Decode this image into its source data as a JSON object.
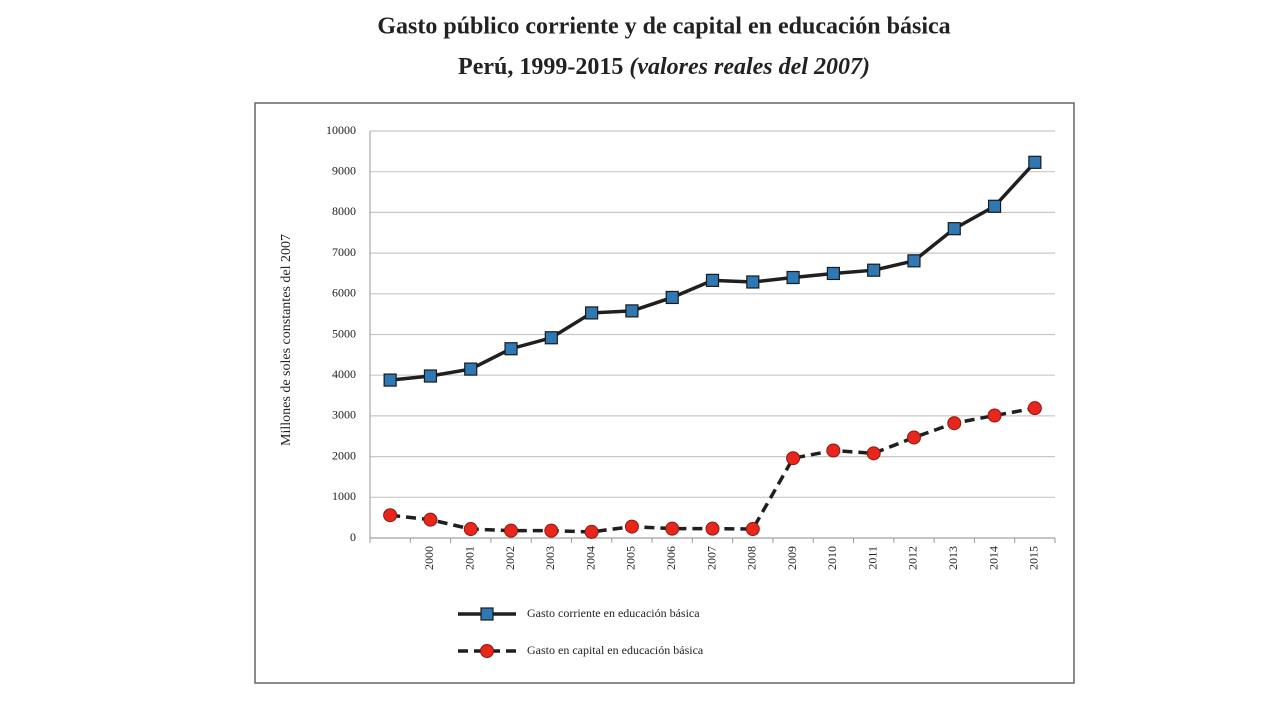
{
  "chart_data": {
    "type": "line",
    "title": "Gasto público corriente y de capital en educación básica",
    "subtitle": "Perú, 1999-2015",
    "subtitle_note": "(valores reales del 2007)",
    "y_label": "Millones de soles constantes del 2007",
    "categories": [
      null,
      "2000",
      "2001",
      "2002",
      "2003",
      "2004",
      "2005",
      "2006",
      "2007",
      "2008",
      "2009",
      "2010",
      "2011",
      "2012",
      "2013",
      "2014",
      "2015"
    ],
    "series": [
      {
        "name": "Gasto corriente en educación básica",
        "color": "#2e78b4",
        "marker": "square",
        "line_style": "solid",
        "values": [
          3880,
          3980,
          4150,
          4650,
          4920,
          5530,
          5580,
          5910,
          6330,
          6290,
          6400,
          6500,
          6580,
          6810,
          7600,
          8150,
          9230
        ]
      },
      {
        "name": "Gasto en capital en educación básica",
        "color": "#e8261c",
        "marker": "circle",
        "line_style": "dashed",
        "values": [
          560,
          450,
          220,
          180,
          180,
          150,
          280,
          230,
          230,
          220,
          1960,
          2150,
          2080,
          2470,
          2820,
          3010,
          3190
        ]
      }
    ],
    "line_color": "#1f1f1f",
    "ylim": [
      0,
      10000
    ],
    "yticks": [
      0,
      1000,
      2000,
      3000,
      4000,
      5000,
      6000,
      7000,
      8000,
      9000,
      10000
    ],
    "grid": true
  }
}
